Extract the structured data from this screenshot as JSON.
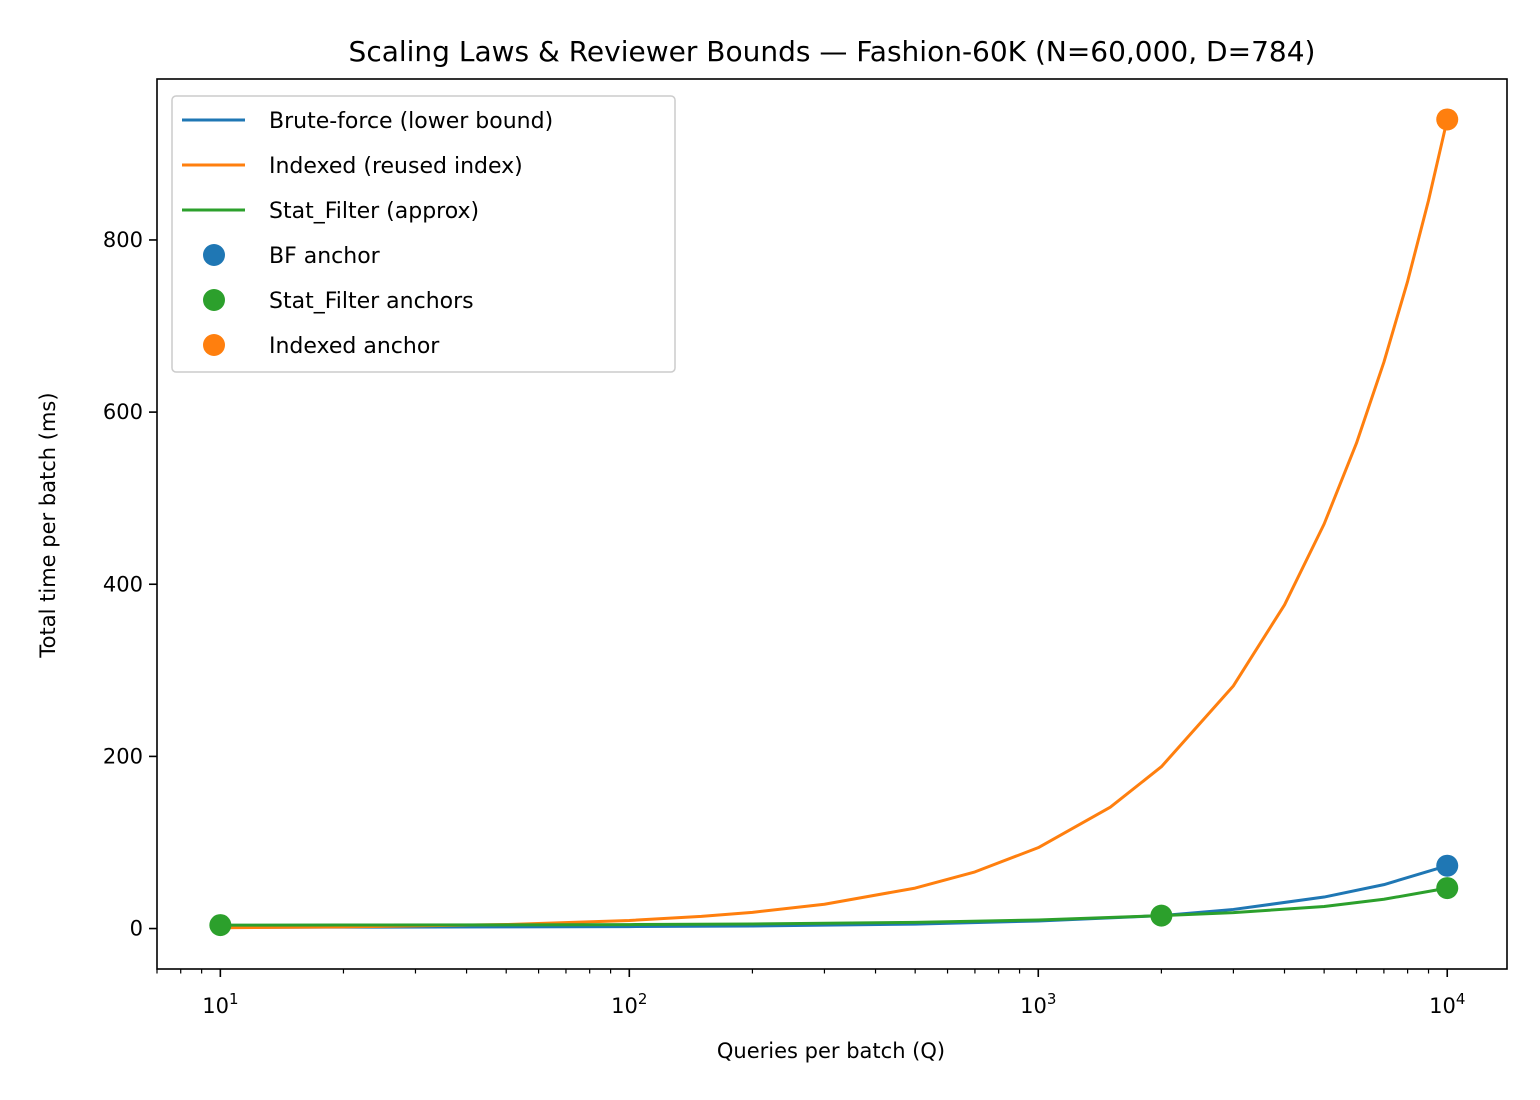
{
  "chart_data": {
    "type": "line",
    "title": "Scaling Laws & Reviewer Bounds — Fashion-60K (N=60,000, D=784)",
    "xlabel": "Queries per batch (Q)",
    "ylabel": "Total time per batch (ms)",
    "xscale": "log",
    "xlim": [
      7,
      14000
    ],
    "ylim": [
      -47,
      987
    ],
    "xticks": [
      {
        "value": 10,
        "base": "10",
        "exp": "1"
      },
      {
        "value": 100,
        "base": "10",
        "exp": "2"
      },
      {
        "value": 1000,
        "base": "10",
        "exp": "3"
      },
      {
        "value": 10000,
        "base": "10",
        "exp": "4"
      }
    ],
    "yticks": [
      {
        "value": 0,
        "label": "0"
      },
      {
        "value": 200,
        "label": "200"
      },
      {
        "value": 400,
        "label": "400"
      },
      {
        "value": 600,
        "label": "600"
      },
      {
        "value": 800,
        "label": "800"
      }
    ],
    "legend_position": "top-left",
    "grid": false,
    "series": [
      {
        "name": "Brute-force (lower bound)",
        "kind": "line",
        "color": "#1f77b4",
        "x": [
          10,
          20,
          50,
          100,
          200,
          500,
          1000,
          2000,
          3000,
          5000,
          7000,
          10000
        ],
        "y": [
          1.5,
          1.6,
          1.9,
          2.3,
          3.0,
          5.2,
          8.8,
          15.0,
          22.2,
          36.6,
          51.0,
          73.0
        ]
      },
      {
        "name": "Indexed (reused index)",
        "kind": "line",
        "color": "#ff7f0e",
        "x": [
          10,
          20,
          50,
          100,
          150,
          200,
          300,
          500,
          700,
          1000,
          1500,
          2000,
          3000,
          4000,
          5000,
          6000,
          7000,
          8000,
          9000,
          10000
        ],
        "y": [
          0.9,
          1.9,
          4.7,
          9.4,
          14.1,
          18.8,
          28.2,
          47.0,
          65.8,
          94.0,
          141.0,
          188.0,
          282.0,
          376.0,
          470.0,
          564.0,
          658.0,
          752.0,
          846.0,
          940.0
        ]
      },
      {
        "name": "Stat_Filter (approx)",
        "kind": "line",
        "color": "#2ca02c",
        "x": [
          10,
          20,
          50,
          100,
          200,
          500,
          1000,
          2000,
          3000,
          5000,
          7000,
          10000
        ],
        "y": [
          4.0,
          4.1,
          4.3,
          4.6,
          5.3,
          7.1,
          10.0,
          15.0,
          18.5,
          25.6,
          34.0,
          47.0
        ]
      },
      {
        "name": "BF anchor",
        "kind": "scatter",
        "color": "#1f77b4",
        "x": [
          10000
        ],
        "y": [
          73
        ]
      },
      {
        "name": "Stat_Filter anchors",
        "kind": "scatter",
        "color": "#2ca02c",
        "x": [
          10,
          2000,
          10000
        ],
        "y": [
          4,
          15,
          47
        ]
      },
      {
        "name": "Indexed anchor",
        "kind": "scatter",
        "color": "#ff7f0e",
        "x": [
          10000
        ],
        "y": [
          940
        ]
      }
    ]
  }
}
